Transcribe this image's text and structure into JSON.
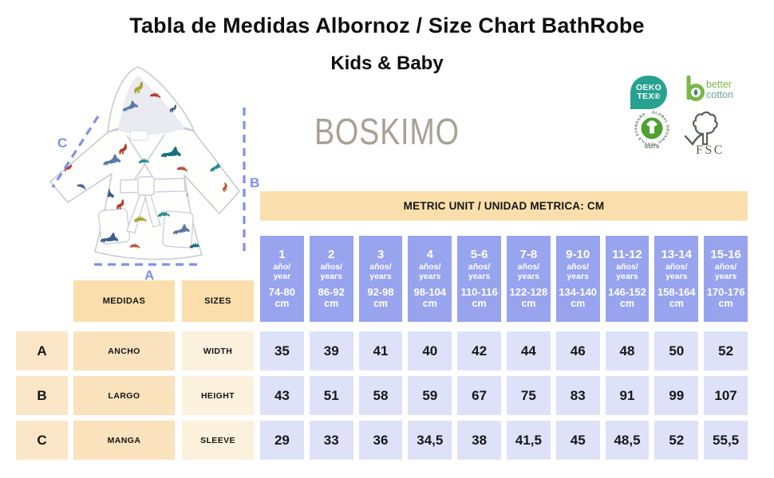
{
  "title": "Tabla de Medidas Albornoz / Size Chart BathRobe",
  "subtitle": "Kids & Baby",
  "brand": "BOSKIMO",
  "metric_banner": "METRIC UNIT / UNIDAD METRICA: CM",
  "diagram": {
    "width_label": "A",
    "height_label": "B",
    "sleeve_label": "C"
  },
  "certifications": {
    "oeko_tex": {
      "line1": "OEKO",
      "line2": "TEX®"
    },
    "better_cotton": {
      "line1": "better",
      "line2": "cotton"
    },
    "gots": {
      "ring_text": "GLOBAL ORGANIC TEXTILE STANDARD",
      "label": "GOTS"
    },
    "fsc": {
      "label": "FSC"
    }
  },
  "table": {
    "medidas_label": "MEDIDAS",
    "sizes_label": "SIZES",
    "columns": [
      {
        "size": "1",
        "age_es": "año/",
        "age_en": "year",
        "range": "74-80",
        "unit": "cm"
      },
      {
        "size": "2",
        "age_es": "años/",
        "age_en": "years",
        "range": "86-92",
        "unit": "cm"
      },
      {
        "size": "3",
        "age_es": "años/",
        "age_en": "years",
        "range": "92-98",
        "unit": "cm"
      },
      {
        "size": "4",
        "age_es": "años/",
        "age_en": "years",
        "range": "98-104",
        "unit": "cm"
      },
      {
        "size": "5-6",
        "age_es": "años/",
        "age_en": "years",
        "range": "110-116",
        "unit": "cm"
      },
      {
        "size": "7-8",
        "age_es": "años/",
        "age_en": "years",
        "range": "122-128",
        "unit": "cm"
      },
      {
        "size": "9-10",
        "age_es": "años/",
        "age_en": "years",
        "range": "134-140",
        "unit": "cm"
      },
      {
        "size": "11-12",
        "age_es": "años/",
        "age_en": "years",
        "range": "146-152",
        "unit": "cm"
      },
      {
        "size": "13-14",
        "age_es": "años/",
        "age_en": "years",
        "range": "158-164",
        "unit": "cm"
      },
      {
        "size": "15-16",
        "age_es": "años/",
        "age_en": "years",
        "range": "170-176",
        "unit": "cm"
      }
    ],
    "rows": [
      {
        "letter": "A",
        "name_es": "ANCHO",
        "name_en": "WIDTH",
        "values": [
          "35",
          "39",
          "41",
          "40",
          "42",
          "44",
          "46",
          "48",
          "50",
          "52"
        ]
      },
      {
        "letter": "B",
        "name_es": "LARGO",
        "name_en": "HEIGHT",
        "values": [
          "43",
          "51",
          "58",
          "59",
          "67",
          "75",
          "83",
          "91",
          "99",
          "107"
        ]
      },
      {
        "letter": "C",
        "name_es": "MANGA",
        "name_en": "SLEEVE",
        "values": [
          "29",
          "33",
          "36",
          "34,5",
          "38",
          "41,5",
          "45",
          "48,5",
          "52",
          "55,5"
        ]
      }
    ]
  },
  "colors": {
    "header_blue": "#98a4ee",
    "value_lavender": "#dee2f8",
    "banner_peach": "#fadfad",
    "letter_peach": "#fbe7c8",
    "name_peach": "#fae2bc",
    "eng_cream": "#fcf1dd",
    "dash_blue": "#7e90e8",
    "brand_gray": "#a8a196",
    "oeko_teal": "#27a291",
    "bc_green": "#7cb548",
    "gots_green": "#4ca132",
    "fsc_green": "#55624f"
  }
}
